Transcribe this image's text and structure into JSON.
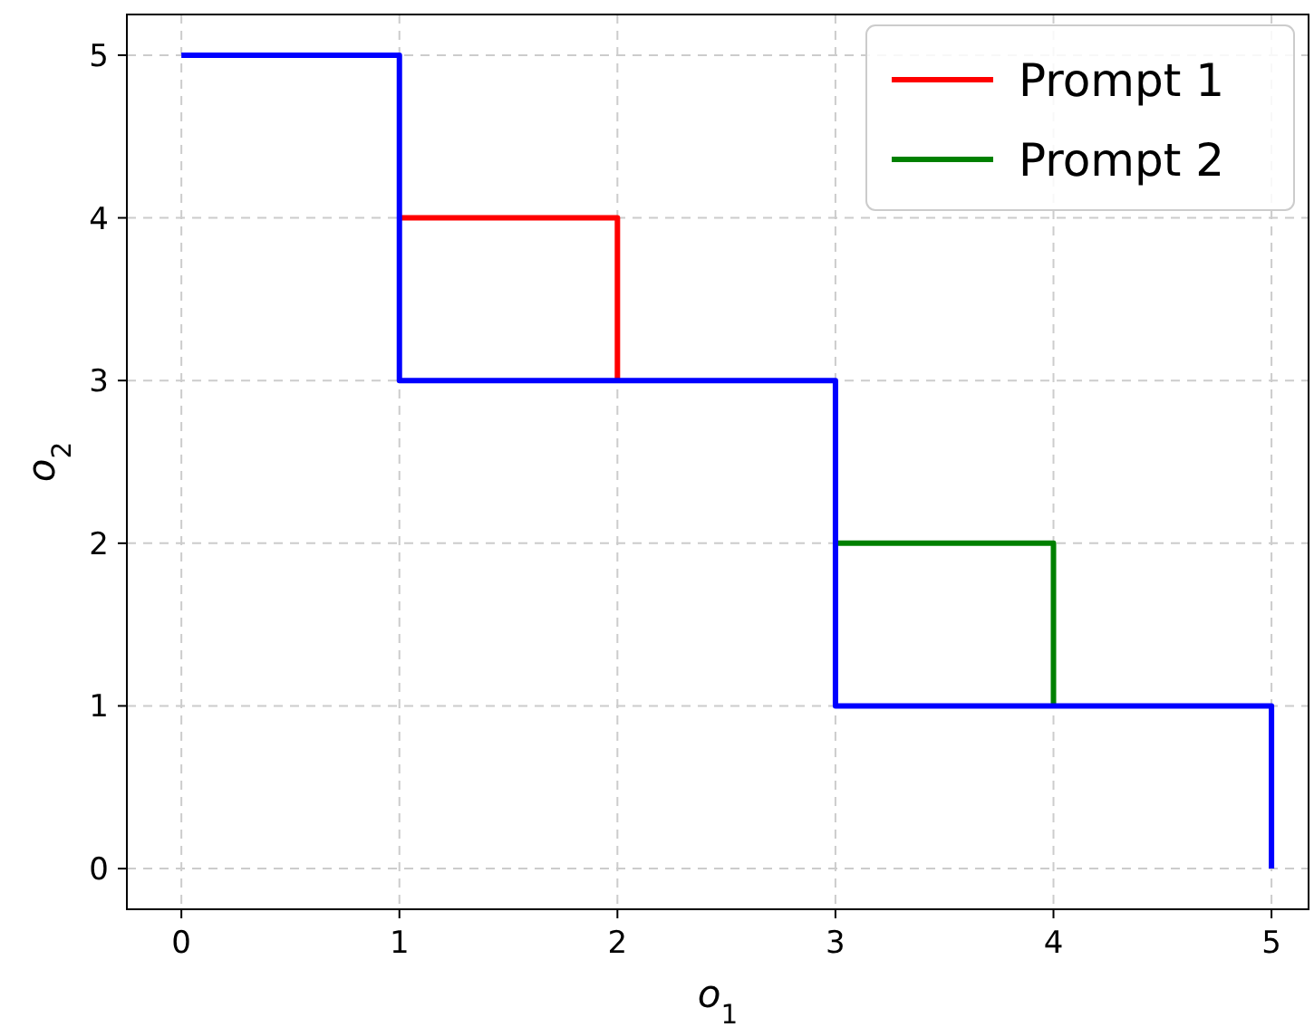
{
  "chart_data": {
    "type": "line",
    "xlabel": "o$_{1}$",
    "ylabel": "o$_{2}$",
    "xlim": [
      -0.25,
      5.17
    ],
    "ylim": [
      -0.25,
      5.25
    ],
    "xticks": [
      0,
      1,
      2,
      3,
      4,
      5
    ],
    "yticks": [
      0,
      1,
      2,
      3,
      4,
      5
    ],
    "grid": true,
    "legend": "top right",
    "marker": "none",
    "line_style": "solid",
    "series": [
      {
        "name": "Prompt 1",
        "color": "#ff0000",
        "x": [
          1,
          2,
          2
        ],
        "values": [
          4,
          4,
          3
        ]
      },
      {
        "name": "Prompt 2",
        "color": "#008000",
        "x": [
          3,
          4,
          4
        ],
        "values": [
          2,
          2,
          1
        ]
      },
      {
        "color": "#0000ff",
        "x": [
          0,
          1,
          1,
          3,
          3,
          5,
          5
        ],
        "values": [
          5,
          5,
          3,
          3,
          1,
          1,
          0
        ]
      }
    ]
  }
}
